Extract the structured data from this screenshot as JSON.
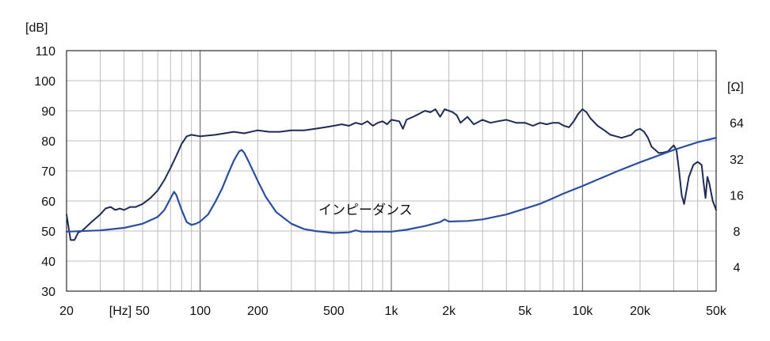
{
  "chart_data": {
    "type": "line",
    "y_unit_left": "[dB]",
    "y_unit_right": "[Ω]",
    "x_unit": "[Hz]",
    "x_scale": "log",
    "xlim": [
      20,
      50000
    ],
    "ylim": [
      30,
      110
    ],
    "y_right_scale": "log",
    "y_right_ticks": [
      {
        "label": "4",
        "value": 4
      },
      {
        "label": "8",
        "value": 8
      },
      {
        "label": "16",
        "value": 16
      },
      {
        "label": "32",
        "value": 32
      },
      {
        "label": "64",
        "value": 64
      }
    ],
    "y_left_ticks": [
      {
        "label": "30",
        "value": 30
      },
      {
        "label": "40",
        "value": 40
      },
      {
        "label": "50",
        "value": 50
      },
      {
        "label": "60",
        "value": 60
      },
      {
        "label": "70",
        "value": 70
      },
      {
        "label": "80",
        "value": 80
      },
      {
        "label": "90",
        "value": 90
      },
      {
        "label": "100",
        "value": 100
      },
      {
        "label": "110",
        "value": 110
      }
    ],
    "x_ticks": [
      {
        "label": "20",
        "value": 20
      },
      {
        "label": "50",
        "value": 50
      },
      {
        "label": "100",
        "value": 100
      },
      {
        "label": "200",
        "value": 200
      },
      {
        "label": "500",
        "value": 500
      },
      {
        "label": "1k",
        "value": 1000
      },
      {
        "label": "2k",
        "value": 2000
      },
      {
        "label": "5k",
        "value": 5000
      },
      {
        "label": "10k",
        "value": 10000
      },
      {
        "label": "20k",
        "value": 20000
      },
      {
        "label": "50k",
        "value": 50000
      }
    ],
    "grid": true,
    "annotation": "インピーダンス",
    "series": [
      {
        "key": "spl",
        "color": "#1f2b55",
        "axis": "left",
        "points": [
          [
            20,
            55.5
          ],
          [
            21,
            47
          ],
          [
            22,
            47
          ],
          [
            23,
            49.5
          ],
          [
            24,
            50
          ],
          [
            25,
            51
          ],
          [
            27,
            53
          ],
          [
            30,
            55.5
          ],
          [
            32,
            57.5
          ],
          [
            34,
            58
          ],
          [
            36,
            57
          ],
          [
            38,
            57.5
          ],
          [
            40,
            57
          ],
          [
            43,
            58
          ],
          [
            46,
            58
          ],
          [
            50,
            59
          ],
          [
            55,
            61
          ],
          [
            60,
            63.5
          ],
          [
            65,
            67
          ],
          [
            70,
            71
          ],
          [
            75,
            75
          ],
          [
            80,
            79
          ],
          [
            85,
            81.5
          ],
          [
            90,
            82
          ],
          [
            100,
            81.5
          ],
          [
            120,
            82
          ],
          [
            150,
            83
          ],
          [
            170,
            82.5
          ],
          [
            200,
            83.5
          ],
          [
            230,
            83
          ],
          [
            260,
            83
          ],
          [
            300,
            83.5
          ],
          [
            350,
            83.5
          ],
          [
            400,
            84
          ],
          [
            450,
            84.5
          ],
          [
            500,
            85
          ],
          [
            550,
            85.5
          ],
          [
            600,
            85
          ],
          [
            650,
            86
          ],
          [
            700,
            85.5
          ],
          [
            750,
            86.5
          ],
          [
            800,
            85
          ],
          [
            850,
            86
          ],
          [
            900,
            86.5
          ],
          [
            950,
            85.5
          ],
          [
            1000,
            87
          ],
          [
            1100,
            86.5
          ],
          [
            1150,
            84
          ],
          [
            1200,
            87
          ],
          [
            1300,
            88
          ],
          [
            1400,
            89
          ],
          [
            1500,
            90
          ],
          [
            1600,
            89.5
          ],
          [
            1700,
            90.5
          ],
          [
            1800,
            88
          ],
          [
            1900,
            90.5
          ],
          [
            2000,
            90
          ],
          [
            2100,
            89.5
          ],
          [
            2200,
            88.5
          ],
          [
            2300,
            86
          ],
          [
            2500,
            88
          ],
          [
            2700,
            85.5
          ],
          [
            3000,
            87
          ],
          [
            3300,
            86
          ],
          [
            3600,
            86.5
          ],
          [
            4000,
            87
          ],
          [
            4500,
            86
          ],
          [
            5000,
            86
          ],
          [
            5500,
            85
          ],
          [
            6000,
            86
          ],
          [
            6500,
            85.5
          ],
          [
            7000,
            86
          ],
          [
            7500,
            86
          ],
          [
            8000,
            85
          ],
          [
            8500,
            84.5
          ],
          [
            9000,
            86.5
          ],
          [
            9500,
            89
          ],
          [
            10000,
            90.5
          ],
          [
            10500,
            89.5
          ],
          [
            11000,
            87.5
          ],
          [
            12000,
            85
          ],
          [
            13000,
            83.5
          ],
          [
            14000,
            82
          ],
          [
            15000,
            81.5
          ],
          [
            16000,
            81
          ],
          [
            17000,
            81.5
          ],
          [
            18000,
            82
          ],
          [
            19000,
            83.5
          ],
          [
            20000,
            84
          ],
          [
            21000,
            83
          ],
          [
            22000,
            81
          ],
          [
            23000,
            78
          ],
          [
            24000,
            77
          ],
          [
            25000,
            76
          ],
          [
            26000,
            76
          ],
          [
            28000,
            76.5
          ],
          [
            30000,
            78.5
          ],
          [
            31000,
            77
          ],
          [
            32000,
            70
          ],
          [
            33000,
            62
          ],
          [
            34000,
            59
          ],
          [
            36000,
            68
          ],
          [
            38000,
            72
          ],
          [
            40000,
            73
          ],
          [
            42000,
            72
          ],
          [
            43000,
            66
          ],
          [
            44000,
            61
          ],
          [
            45000,
            68
          ],
          [
            46000,
            66
          ],
          [
            48000,
            60
          ],
          [
            50000,
            57
          ]
        ]
      },
      {
        "key": "impedance",
        "color": "#2b4f9e",
        "axis": "right",
        "points": [
          [
            20,
            7.9
          ],
          [
            30,
            8.1
          ],
          [
            40,
            8.5
          ],
          [
            50,
            9.2
          ],
          [
            60,
            10.5
          ],
          [
            65,
            12
          ],
          [
            70,
            15
          ],
          [
            73,
            17
          ],
          [
            75,
            16
          ],
          [
            80,
            12
          ],
          [
            85,
            9.5
          ],
          [
            90,
            9
          ],
          [
            95,
            9.2
          ],
          [
            100,
            9.6
          ],
          [
            110,
            11
          ],
          [
            120,
            14
          ],
          [
            130,
            18
          ],
          [
            140,
            24
          ],
          [
            150,
            31
          ],
          [
            160,
            37
          ],
          [
            165,
            38
          ],
          [
            170,
            36
          ],
          [
            180,
            30
          ],
          [
            200,
            21
          ],
          [
            220,
            15.5
          ],
          [
            250,
            11.5
          ],
          [
            300,
            9.2
          ],
          [
            350,
            8.3
          ],
          [
            400,
            8
          ],
          [
            500,
            7.7
          ],
          [
            600,
            7.8
          ],
          [
            650,
            8.1
          ],
          [
            700,
            7.9
          ],
          [
            800,
            7.9
          ],
          [
            1000,
            7.9
          ],
          [
            1200,
            8.2
          ],
          [
            1500,
            8.8
          ],
          [
            1800,
            9.5
          ],
          [
            1900,
            10
          ],
          [
            2000,
            9.6
          ],
          [
            2500,
            9.7
          ],
          [
            3000,
            10
          ],
          [
            4000,
            11
          ],
          [
            5000,
            12.3
          ],
          [
            6000,
            13.5
          ],
          [
            7000,
            15
          ],
          [
            8000,
            16.5
          ],
          [
            10000,
            19
          ],
          [
            15000,
            25
          ],
          [
            20000,
            30
          ],
          [
            30000,
            38
          ],
          [
            40000,
            44
          ],
          [
            50000,
            48
          ]
        ]
      }
    ]
  }
}
